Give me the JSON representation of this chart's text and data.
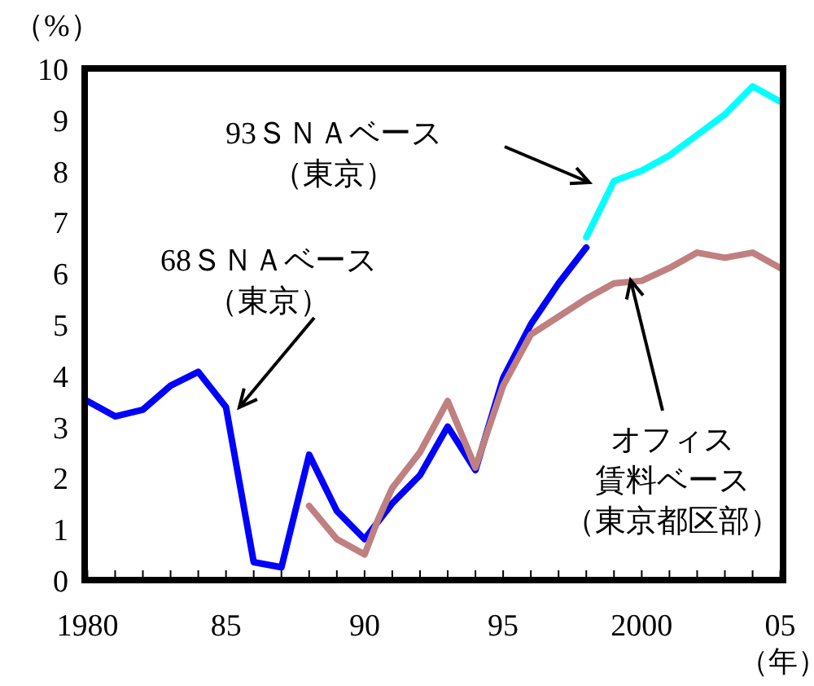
{
  "chart_data": {
    "type": "line",
    "ylabel": "（%）",
    "xlabel": "（年）",
    "xlim": [
      1979.9,
      2005.1
    ],
    "ylim": [
      0,
      10
    ],
    "xticks": [
      {
        "value": 1980,
        "label": "1980"
      },
      {
        "value": 1981,
        "label": null
      },
      {
        "value": 1982,
        "label": null
      },
      {
        "value": 1983,
        "label": null
      },
      {
        "value": 1984,
        "label": null
      },
      {
        "value": 1985,
        "label": "85"
      },
      {
        "value": 1986,
        "label": null
      },
      {
        "value": 1987,
        "label": null
      },
      {
        "value": 1988,
        "label": null
      },
      {
        "value": 1989,
        "label": null
      },
      {
        "value": 1990,
        "label": "90"
      },
      {
        "value": 1991,
        "label": null
      },
      {
        "value": 1992,
        "label": null
      },
      {
        "value": 1993,
        "label": null
      },
      {
        "value": 1994,
        "label": null
      },
      {
        "value": 1995,
        "label": "95"
      },
      {
        "value": 1996,
        "label": null
      },
      {
        "value": 1997,
        "label": null
      },
      {
        "value": 1998,
        "label": null
      },
      {
        "value": 1999,
        "label": null
      },
      {
        "value": 2000,
        "label": "2000"
      },
      {
        "value": 2001,
        "label": null
      },
      {
        "value": 2002,
        "label": null
      },
      {
        "value": 2003,
        "label": null
      },
      {
        "value": 2004,
        "label": null
      },
      {
        "value": 2005,
        "label": "05"
      }
    ],
    "yticks": [
      0,
      1,
      2,
      3,
      4,
      5,
      6,
      7,
      8,
      9,
      10
    ],
    "grid": false,
    "marker": "none",
    "line_style": "solid",
    "series": [
      {
        "color": "#0000ff",
        "x": [
          1980,
          1981,
          1982,
          1983,
          1984,
          1985,
          1986,
          1987,
          1988,
          1989,
          1990,
          1991,
          1992,
          1993,
          1994,
          1995,
          1996,
          1997,
          1998
        ],
        "values": [
          3.5,
          3.2,
          3.33,
          3.8,
          4.07,
          3.38,
          0.35,
          0.25,
          2.45,
          1.35,
          0.8,
          1.5,
          2.05,
          3.0,
          2.15,
          3.95,
          5.0,
          5.8,
          6.5
        ]
      },
      {
        "color": "#00ffff",
        "x": [
          1998,
          1999,
          2000,
          2001,
          2002,
          2003,
          2004,
          2005
        ],
        "values": [
          6.7,
          7.8,
          8.0,
          8.3,
          8.7,
          9.1,
          9.65,
          9.35
        ]
      },
      {
        "color": "#c08080",
        "x": [
          1988,
          1989,
          1990,
          1990.5,
          1991,
          1992,
          1993,
          1994,
          1995,
          1996,
          1997,
          1998,
          1999,
          2000,
          2001,
          2002,
          2003,
          2004,
          2005
        ],
        "values": [
          1.45,
          0.8,
          0.5,
          1.2,
          1.8,
          2.5,
          3.5,
          2.2,
          3.8,
          4.8,
          5.15,
          5.5,
          5.8,
          5.85,
          6.1,
          6.4,
          6.3,
          6.4,
          6.1
        ]
      }
    ],
    "annotations": [
      "93ＳＮＡベース（東京）",
      "68ＳＮＡベース（東京）",
      {
        "text": "オフィス賃料ベース（東京都区部）",
        "x": 1999.6,
        "y": 5.86
      }
    ]
  }
}
